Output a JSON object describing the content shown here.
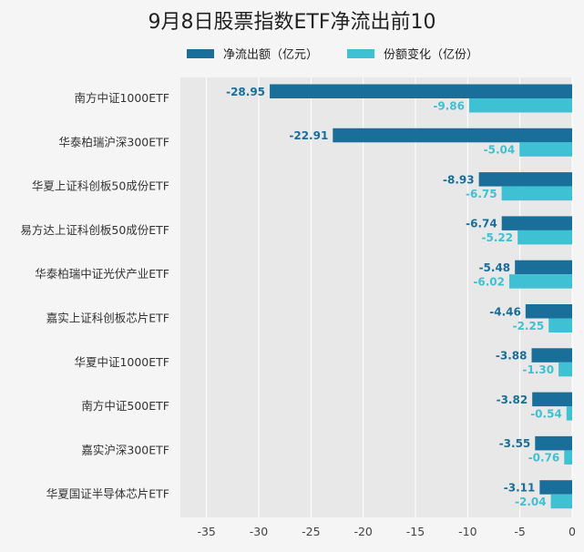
{
  "chart_data": {
    "type": "bar",
    "orientation": "horizontal",
    "title": "9月8日股票指数ETF净流出前10",
    "categories": [
      "南方中证1000ETF",
      "华泰柏瑞沪深300ETF",
      "华夏上证科创板50成份ETF",
      "易方达上证科创板50成份ETF",
      "华泰柏瑞中证光伏产业ETF",
      "嘉实上证科创板芯片ETF",
      "华夏中证1000ETF",
      "南方中证500ETF",
      "嘉实沪深300ETF",
      "华夏国证半导体芯片ETF"
    ],
    "series": [
      {
        "name": "净流出额（亿元）",
        "color": "#1a6e9a",
        "values": [
          -28.95,
          -22.91,
          -8.93,
          -6.74,
          -5.48,
          -4.46,
          -3.88,
          -3.82,
          -3.55,
          -3.11
        ],
        "labels": [
          "-28.95",
          "-22.91",
          "-8.93",
          "-6.74",
          "-5.48",
          "-4.46",
          "-3.88",
          "-3.82",
          "-3.55",
          "-3.11"
        ]
      },
      {
        "name": "份额变化（亿份）",
        "color": "#3dc1d3",
        "values": [
          -9.86,
          -5.04,
          -6.75,
          -5.22,
          -6.02,
          -2.25,
          -1.3,
          -0.54,
          -0.76,
          -2.04
        ],
        "labels": [
          "-9.86",
          "-5.04",
          "-6.75",
          "-5.22",
          "-6.02",
          "-2.25",
          "-1.30",
          "-0.54",
          "-0.76",
          "-2.04"
        ]
      }
    ],
    "xlim": [
      -37.5,
      0
    ],
    "xticks": [
      -35,
      -30,
      -25,
      -20,
      -15,
      -10,
      -5,
      0
    ],
    "xtick_labels": [
      "-35",
      "-30",
      "-25",
      "-20",
      "-15",
      "-10",
      "-5",
      "0"
    ],
    "grid": true,
    "legend_position": "top"
  }
}
